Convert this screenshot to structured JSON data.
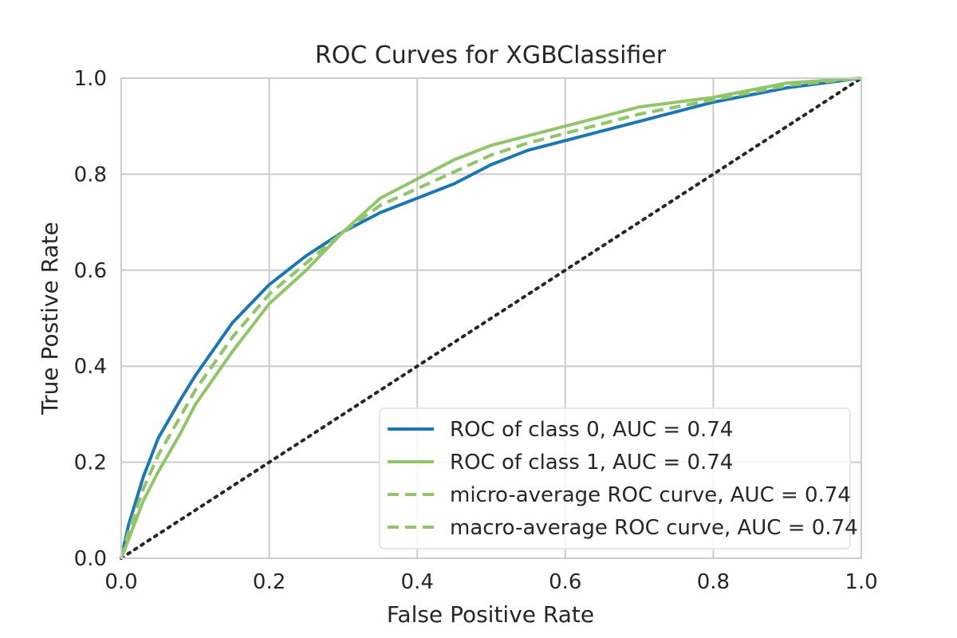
{
  "chart_data": {
    "type": "line",
    "title": "ROC Curves for XGBClassifier",
    "xlabel": "False Positive Rate",
    "ylabel": "True Postive Rate",
    "xlim": [
      0.0,
      1.0
    ],
    "ylim": [
      0.0,
      1.0
    ],
    "xticks": [
      "0.0",
      "0.2",
      "0.4",
      "0.6",
      "0.8",
      "1.0"
    ],
    "yticks": [
      "0.0",
      "0.2",
      "0.4",
      "0.6",
      "0.8",
      "1.0"
    ],
    "grid": true,
    "legend_position": "lower-right",
    "series": [
      {
        "name": "ROC of class 0, AUC = 0.74",
        "color": "#1a77b4",
        "style": "solid",
        "x": [
          0.0,
          0.01,
          0.03,
          0.05,
          0.08,
          0.1,
          0.15,
          0.2,
          0.25,
          0.3,
          0.35,
          0.4,
          0.45,
          0.5,
          0.55,
          0.6,
          0.65,
          0.7,
          0.8,
          0.9,
          1.0
        ],
        "y": [
          0.0,
          0.07,
          0.17,
          0.25,
          0.33,
          0.38,
          0.49,
          0.57,
          0.63,
          0.68,
          0.72,
          0.75,
          0.78,
          0.82,
          0.85,
          0.87,
          0.89,
          0.91,
          0.95,
          0.98,
          1.0
        ]
      },
      {
        "name": "ROC of class 1, AUC = 0.74",
        "color": "#91c46b",
        "style": "solid",
        "x": [
          0.0,
          0.01,
          0.03,
          0.05,
          0.08,
          0.1,
          0.15,
          0.2,
          0.25,
          0.3,
          0.35,
          0.4,
          0.45,
          0.5,
          0.55,
          0.6,
          0.65,
          0.7,
          0.8,
          0.9,
          1.0
        ],
        "y": [
          0.0,
          0.04,
          0.12,
          0.18,
          0.26,
          0.32,
          0.43,
          0.53,
          0.6,
          0.68,
          0.75,
          0.79,
          0.83,
          0.86,
          0.88,
          0.9,
          0.92,
          0.94,
          0.96,
          0.99,
          1.0
        ]
      },
      {
        "name": "micro-average ROC curve, AUC = 0.74",
        "color": "#91c46b",
        "style": "dashed",
        "x": [
          0.0,
          0.01,
          0.03,
          0.05,
          0.08,
          0.1,
          0.15,
          0.2,
          0.25,
          0.3,
          0.35,
          0.4,
          0.45,
          0.5,
          0.55,
          0.6,
          0.65,
          0.7,
          0.8,
          0.9,
          1.0
        ],
        "y": [
          0.0,
          0.055,
          0.145,
          0.215,
          0.295,
          0.35,
          0.46,
          0.55,
          0.615,
          0.68,
          0.735,
          0.77,
          0.805,
          0.84,
          0.865,
          0.885,
          0.905,
          0.925,
          0.955,
          0.985,
          1.0
        ]
      },
      {
        "name": "macro-average ROC curve, AUC = 0.74",
        "color": "#91c46b",
        "style": "dashed",
        "x": [
          0.0,
          0.01,
          0.03,
          0.05,
          0.08,
          0.1,
          0.15,
          0.2,
          0.25,
          0.3,
          0.35,
          0.4,
          0.45,
          0.5,
          0.55,
          0.6,
          0.65,
          0.7,
          0.8,
          0.9,
          1.0
        ],
        "y": [
          0.0,
          0.055,
          0.145,
          0.215,
          0.295,
          0.35,
          0.46,
          0.55,
          0.615,
          0.68,
          0.735,
          0.77,
          0.805,
          0.84,
          0.865,
          0.885,
          0.905,
          0.925,
          0.955,
          0.985,
          1.0
        ]
      }
    ],
    "reference_line": {
      "color": "#262626",
      "style": "dotted",
      "x": [
        0.0,
        1.0
      ],
      "y": [
        0.0,
        1.0
      ]
    }
  }
}
